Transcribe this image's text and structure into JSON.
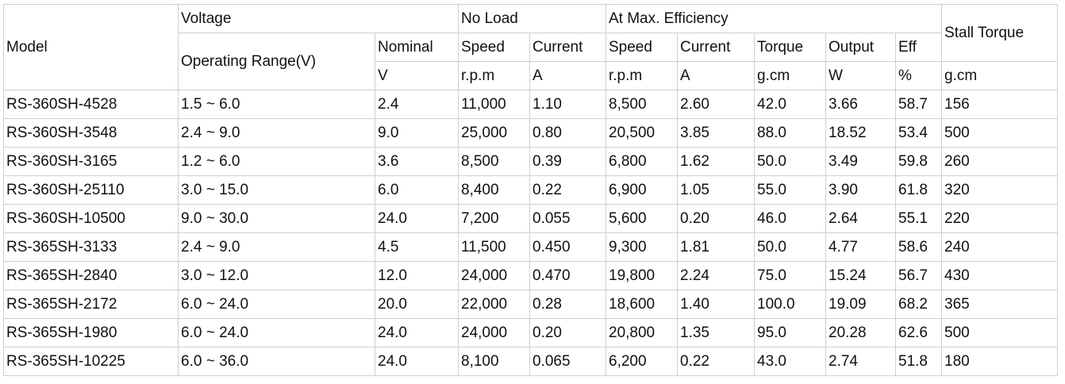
{
  "table": {
    "header": {
      "model": "Model",
      "voltage": "Voltage",
      "no_load": "No Load",
      "at_max_efficiency": "At Max. Efficiency",
      "stall_torque": "Stall Torque",
      "operating_range": "Operating Range(V)",
      "row2": [
        "Nominal",
        "Speed",
        "Current",
        "Speed",
        "Current",
        "Torque",
        "Output",
        "Eff"
      ],
      "row3": [
        "V",
        "r.p.m",
        "A",
        "r.p.m",
        "A",
        "g.cm",
        "W",
        "%",
        "g.cm"
      ]
    },
    "rows": [
      [
        "RS-360SH-4528",
        "1.5 ~ 6.0",
        "2.4",
        "11,000",
        "1.10",
        "8,500",
        "2.60",
        "42.0",
        "3.66",
        "58.7",
        "156"
      ],
      [
        "RS-360SH-3548",
        "2.4 ~ 9.0",
        "9.0",
        "25,000",
        "0.80",
        "20,500",
        "3.85",
        "88.0",
        "18.52",
        "53.4",
        "500"
      ],
      [
        "RS-360SH-3165",
        "1.2 ~ 6.0",
        "3.6",
        "8,500",
        "0.39",
        "6,800",
        "1.62",
        "50.0",
        "3.49",
        "59.8",
        "260"
      ],
      [
        "RS-360SH-25110",
        "3.0 ~ 15.0",
        "6.0",
        "8,400",
        "0.22",
        "6,900",
        "1.05",
        "55.0",
        "3.90",
        "61.8",
        "320"
      ],
      [
        "RS-360SH-10500",
        "9.0 ~ 30.0",
        "24.0",
        "7,200",
        "0.055",
        "5,600",
        "0.20",
        "46.0",
        "2.64",
        "55.1",
        "220"
      ],
      [
        "RS-365SH-3133",
        "2.4 ~ 9.0",
        "4.5",
        "11,500",
        "0.450",
        "9,300",
        "1.81",
        "50.0",
        "4.77",
        "58.6",
        "240"
      ],
      [
        "RS-365SH-2840",
        "3.0 ~ 12.0",
        "12.0",
        "24,000",
        "0.470",
        "19,800",
        "2.24",
        "75.0",
        "15.24",
        "56.7",
        "430"
      ],
      [
        "RS-365SH-2172",
        "6.0 ~ 24.0",
        "20.0",
        "22,000",
        "0.28",
        "18,600",
        "1.40",
        "100.0",
        "19.09",
        "68.2",
        "365"
      ],
      [
        "RS-365SH-1980",
        "6.0 ~ 24.0",
        "24.0",
        "24,000",
        "0.20",
        "20,800",
        "1.35",
        "95.0",
        "20.28",
        "62.6",
        "500"
      ],
      [
        "RS-365SH-10225",
        "6.0 ~ 36.0",
        "24.0",
        "8,100",
        "0.065",
        "6,200",
        "0.22",
        "43.0",
        "2.74",
        "51.8",
        "180"
      ]
    ]
  }
}
